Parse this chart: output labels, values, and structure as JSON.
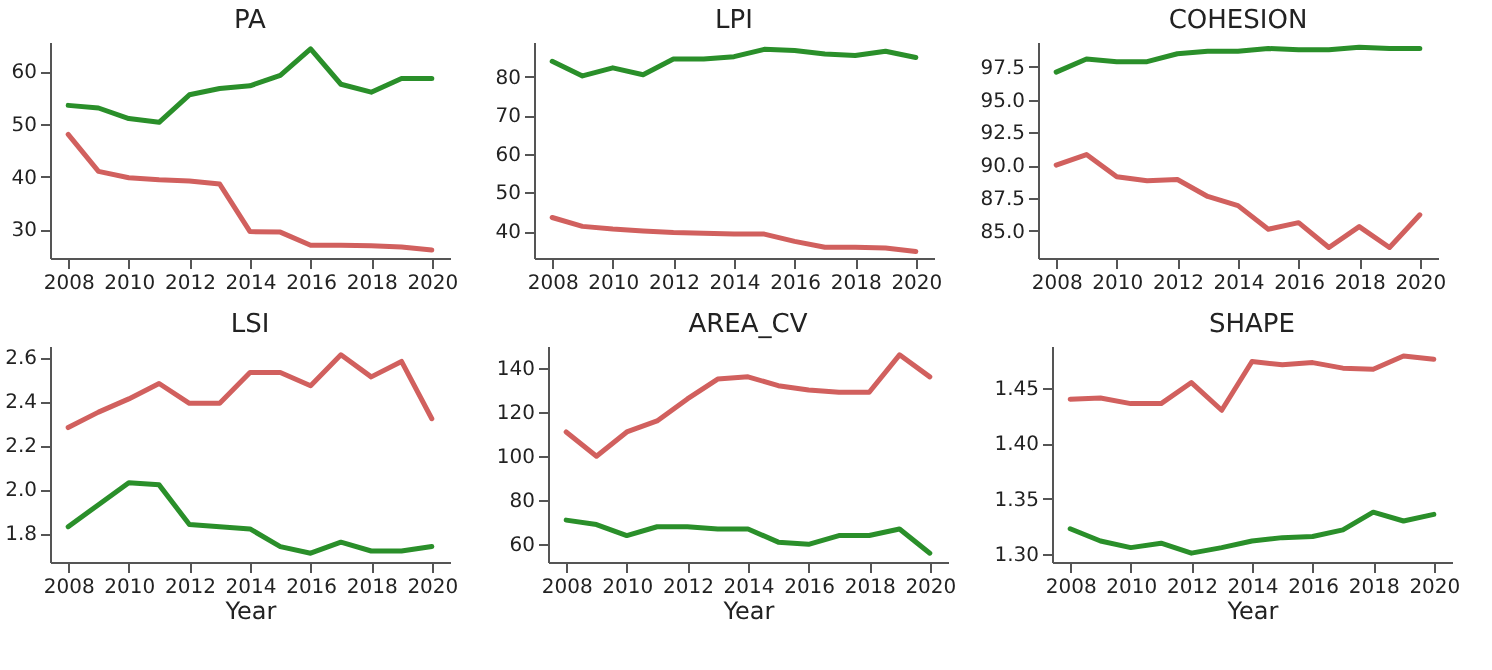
{
  "chart_data": [
    {
      "type": "line",
      "title": "PA",
      "x": [
        2008,
        2009,
        2010,
        2011,
        2012,
        2013,
        2014,
        2015,
        2016,
        2017,
        2018,
        2019,
        2020
      ],
      "xlim": [
        2007.4,
        2020.6
      ],
      "xticks": [
        2008,
        2010,
        2012,
        2014,
        2016,
        2018,
        2020
      ],
      "ylim": [
        24.6,
        65.5
      ],
      "yticks": [
        30,
        40,
        50,
        60
      ],
      "grid": false,
      "series": [
        {
          "color": "#2a8f2a",
          "values": [
            53.5,
            53,
            51,
            50.3,
            55.5,
            56.7,
            57.2,
            59.2,
            64.2,
            57.5,
            56,
            58.6,
            58.6
          ]
        },
        {
          "color": "#d1605e",
          "values": [
            48,
            41,
            39.8,
            39.4,
            39.2,
            38.6,
            29.6,
            29.5,
            27,
            27,
            26.9,
            26.7,
            26.1
          ]
        }
      ]
    },
    {
      "type": "line",
      "title": "LPI",
      "x": [
        2008,
        2009,
        2010,
        2011,
        2012,
        2013,
        2014,
        2015,
        2016,
        2017,
        2018,
        2019,
        2020
      ],
      "xlim": [
        2007.4,
        2020.6
      ],
      "xticks": [
        2008,
        2010,
        2012,
        2014,
        2016,
        2018,
        2020
      ],
      "ylim": [
        33,
        89
      ],
      "yticks": [
        40,
        50,
        60,
        70,
        80
      ],
      "grid": false,
      "series": [
        {
          "color": "#2a8f2a",
          "values": [
            84,
            80.2,
            82.3,
            80.5,
            84.6,
            84.6,
            85.2,
            87.1,
            86.8,
            85.9,
            85.5,
            86.6,
            85
          ]
        },
        {
          "color": "#d1605e",
          "values": [
            43.5,
            41.2,
            40.5,
            40,
            39.6,
            39.4,
            39.2,
            39.2,
            37.3,
            35.8,
            35.8,
            35.6,
            34.7
          ]
        }
      ]
    },
    {
      "type": "line",
      "title": "COHESION",
      "x": [
        2008,
        2009,
        2010,
        2011,
        2012,
        2013,
        2014,
        2015,
        2016,
        2017,
        2018,
        2019,
        2020
      ],
      "xlim": [
        2007.4,
        2020.6
      ],
      "xticks": [
        2008,
        2010,
        2012,
        2014,
        2016,
        2018,
        2020
      ],
      "ylim": [
        82.9,
        99.4
      ],
      "yticks": [
        {
          "value": 85,
          "label": "85.0"
        },
        87.5,
        {
          "value": 90,
          "label": "90.0"
        },
        92.5,
        {
          "value": 95,
          "label": "95.0"
        },
        97.5
      ],
      "grid": false,
      "series": [
        {
          "color": "#2a8f2a",
          "values": [
            97.1,
            98.1,
            97.9,
            97.9,
            98.5,
            98.7,
            98.7,
            98.9,
            98.8,
            98.8,
            99,
            98.9,
            98.9
          ]
        },
        {
          "color": "#d1605e",
          "values": [
            90,
            90.8,
            89.1,
            88.8,
            88.9,
            87.6,
            86.9,
            85.1,
            85.6,
            83.7,
            85.3,
            83.7,
            86.2
          ]
        }
      ]
    },
    {
      "type": "line",
      "title": "LSI",
      "xlabel": "Year",
      "x": [
        2008,
        2009,
        2010,
        2011,
        2012,
        2013,
        2014,
        2015,
        2016,
        2017,
        2018,
        2019,
        2020
      ],
      "xlim": [
        2007.4,
        2020.6
      ],
      "xticks": [
        2008,
        2010,
        2012,
        2014,
        2016,
        2018,
        2020
      ],
      "ylim": [
        1.67,
        2.65
      ],
      "yticks": [
        1.8,
        {
          "value": 2,
          "label": "2.0"
        },
        2.2,
        2.4,
        2.6
      ],
      "grid": false,
      "series": [
        {
          "color": "#d1605e",
          "values": [
            2.28,
            2.35,
            2.41,
            2.48,
            2.39,
            2.39,
            2.53,
            2.53,
            2.47,
            2.61,
            2.51,
            2.58,
            2.32
          ]
        },
        {
          "color": "#2a8f2a",
          "values": [
            1.83,
            1.93,
            2.03,
            2.02,
            1.84,
            1.83,
            1.82,
            1.74,
            1.71,
            1.76,
            1.72,
            1.72,
            1.74
          ]
        }
      ]
    },
    {
      "type": "line",
      "title": "AREA_CV",
      "xlabel": "Year",
      "x": [
        2008,
        2009,
        2010,
        2011,
        2012,
        2013,
        2014,
        2015,
        2016,
        2017,
        2018,
        2019,
        2020
      ],
      "xlim": [
        2007.4,
        2020.6
      ],
      "xticks": [
        2008,
        2010,
        2012,
        2014,
        2016,
        2018,
        2020
      ],
      "ylim": [
        52,
        150
      ],
      "yticks": [
        60,
        80,
        100,
        120,
        140
      ],
      "grid": false,
      "series": [
        {
          "color": "#d1605e",
          "values": [
            111,
            100,
            111,
            116,
            126,
            135,
            136,
            132,
            130,
            129,
            129,
            146,
            136
          ]
        },
        {
          "color": "#2a8f2a",
          "values": [
            71,
            69,
            64,
            68,
            68,
            67,
            67,
            61,
            60,
            64,
            64,
            67,
            56
          ]
        }
      ]
    },
    {
      "type": "line",
      "title": "SHAPE",
      "xlabel": "Year",
      "x": [
        2008,
        2009,
        2010,
        2011,
        2012,
        2013,
        2014,
        2015,
        2016,
        2017,
        2018,
        2019,
        2020
      ],
      "xlim": [
        2007.4,
        2020.6
      ],
      "xticks": [
        2008,
        2010,
        2012,
        2014,
        2016,
        2018,
        2020
      ],
      "ylim": [
        1.293,
        1.488
      ],
      "yticks": [
        {
          "value": 1.3,
          "label": "1.30"
        },
        {
          "value": 1.35,
          "label": "1.35"
        },
        {
          "value": 1.4,
          "label": "1.40"
        },
        {
          "value": 1.45,
          "label": "1.45"
        }
      ],
      "grid": false,
      "series": [
        {
          "color": "#d1605e",
          "values": [
            1.44,
            1.441,
            1.436,
            1.436,
            1.455,
            1.43,
            1.474,
            1.471,
            1.473,
            1.468,
            1.467,
            1.479,
            1.476
          ]
        },
        {
          "color": "#2a8f2a",
          "values": [
            1.323,
            1.312,
            1.306,
            1.31,
            1.301,
            1.306,
            1.312,
            1.315,
            1.316,
            1.322,
            1.338,
            1.33,
            1.336
          ]
        }
      ]
    }
  ]
}
